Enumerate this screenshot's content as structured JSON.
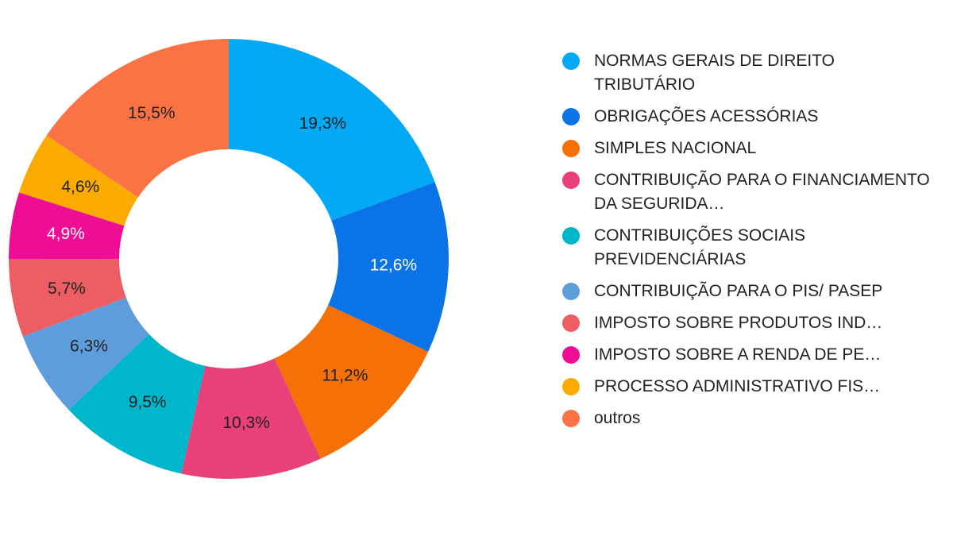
{
  "chart_data": {
    "type": "pie",
    "style": "donut",
    "title": "",
    "legend_position": "right",
    "series": [
      {
        "name": "NORMAS GERAIS DE DIREITO TRIBUTÁRIO",
        "value": 19.3,
        "label": "19,3%",
        "color": "#03a9f4",
        "label_color": "#222222"
      },
      {
        "name": "OBRIGAÇÕES ACESSÓRIAS",
        "value": 12.6,
        "label": "12,6%",
        "color": "#0a73e8",
        "label_color": "#ffffff"
      },
      {
        "name": "SIMPLES NACIONAL",
        "value": 11.2,
        "label": "11,2%",
        "color": "#f57007",
        "label_color": "#222222"
      },
      {
        "name": "CONTRIBUIÇÃO PARA O FINANCIAMENTO DA SEGURIDA…",
        "value": 10.3,
        "label": "10,3%",
        "color": "#e9407a",
        "label_color": "#222222"
      },
      {
        "name": "CONTRIBUIÇÕES SOCIAIS PREVIDENCIÁRIAS",
        "value": 9.5,
        "label": "9,5%",
        "color": "#00b6cb",
        "label_color": "#222222"
      },
      {
        "name": "CONTRIBUIÇÃO PARA O PIS/ PASEP",
        "value": 6.3,
        "label": "6,3%",
        "color": "#5e9ddb",
        "label_color": "#222222"
      },
      {
        "name": "IMPOSTO SOBRE PRODUTOS IND…",
        "value": 5.7,
        "label": "5,7%",
        "color": "#ec5e63",
        "label_color": "#222222"
      },
      {
        "name": "IMPOSTO SOBRE A RENDA DE PE…",
        "value": 4.9,
        "label": "4,9%",
        "color": "#ef0d95",
        "label_color": "#ffffff"
      },
      {
        "name": "PROCESSO ADMINISTRATIVO FIS…",
        "value": 4.6,
        "label": "4,6%",
        "color": "#fbab00",
        "label_color": "#222222"
      },
      {
        "name": "outros",
        "value": 15.5,
        "label": "15,5%",
        "color": "#fb7245",
        "label_color": "#222222"
      }
    ]
  }
}
